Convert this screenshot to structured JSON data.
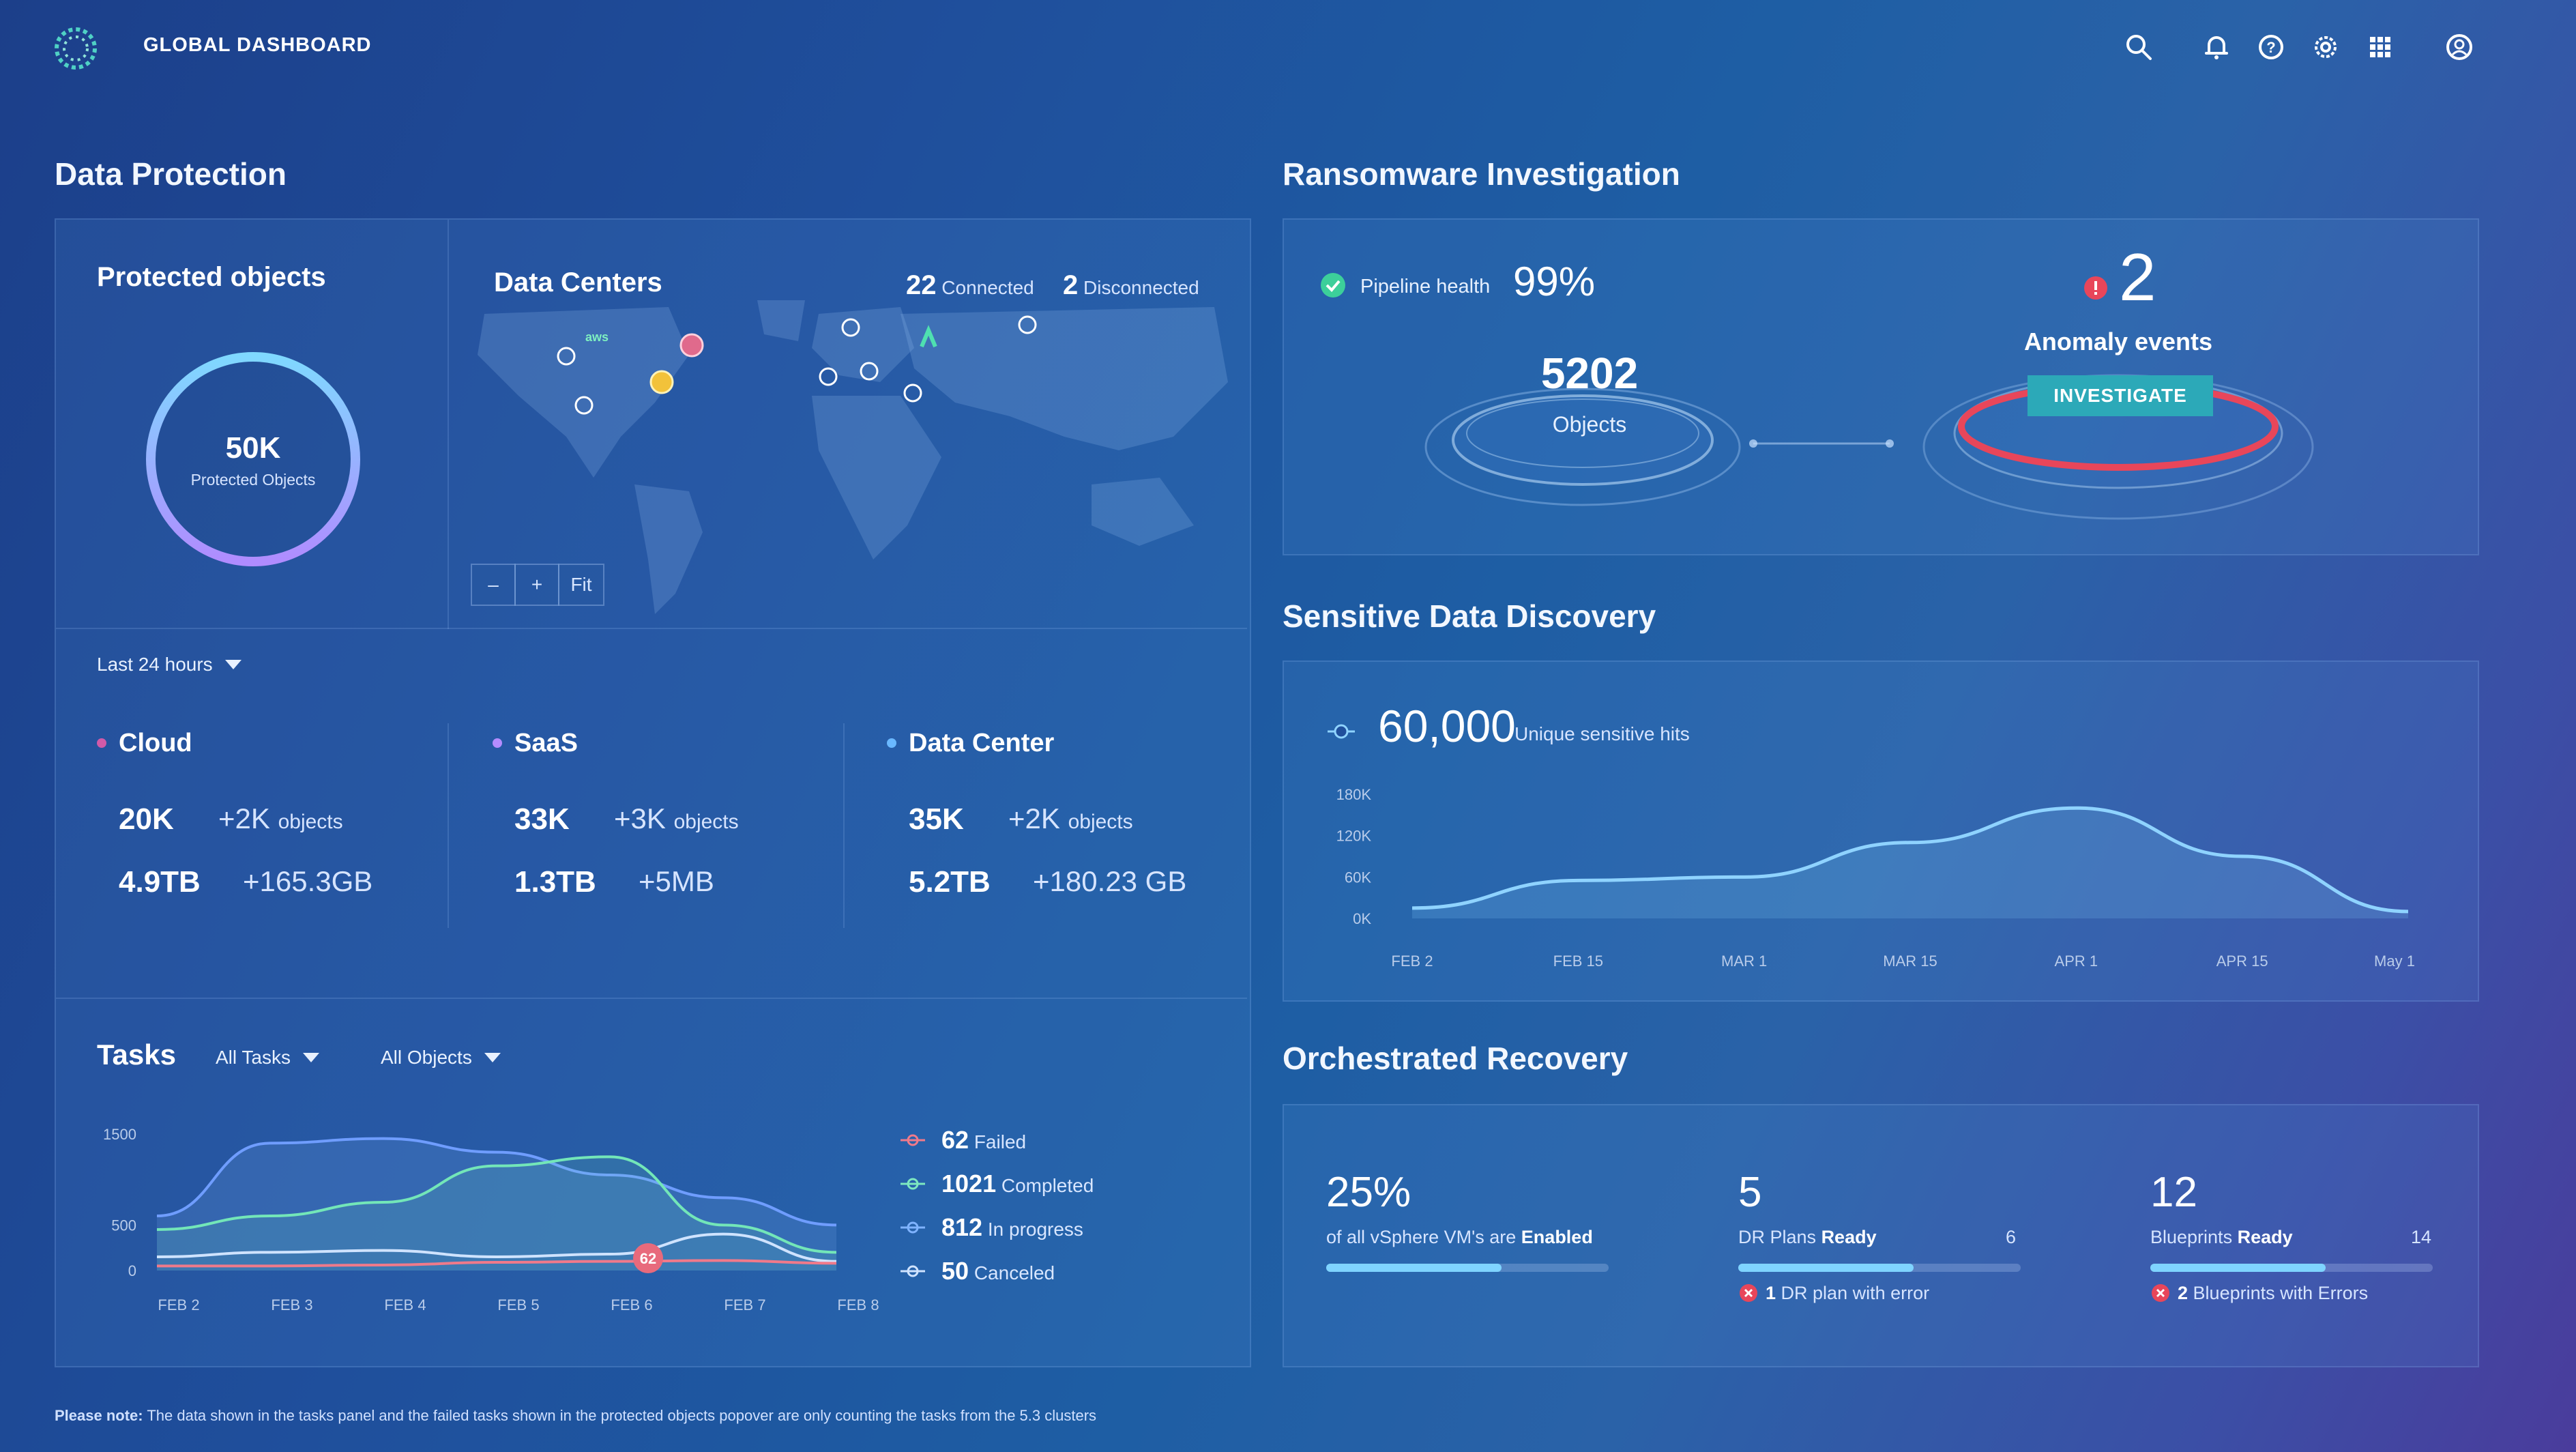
{
  "header": {
    "title": "GLOBAL DASHBOARD",
    "icons": [
      "search-icon",
      "bell-icon",
      "help-icon",
      "gear-icon",
      "apps-grid-icon",
      "user-icon"
    ]
  },
  "data_protection": {
    "title": "Data Protection",
    "protected": {
      "title": "Protected objects",
      "value": "50K",
      "label": "Protected Objects"
    },
    "datacenters": {
      "title": "Data Centers",
      "connected_count": "22",
      "connected_label": "Connected",
      "disconnected_count": "2",
      "disconnected_label": "Disconnected",
      "aws_label": "aws",
      "zoom_out": "–",
      "zoom_in": "+",
      "fit": "Fit"
    },
    "time_filter": "Last 24 hours",
    "categories": [
      {
        "name": "Cloud",
        "color": "#d15aa8",
        "count": "20K",
        "count_delta": "+2K",
        "unit": "objects",
        "size": "4.9TB",
        "size_delta": "+165.3GB"
      },
      {
        "name": "SaaS",
        "color": "#b48cff",
        "count": "33K",
        "count_delta": "+3K",
        "unit": "objects",
        "size": "1.3TB",
        "size_delta": "+5MB"
      },
      {
        "name": "Data Center",
        "color": "#6ab8ff",
        "count": "35K",
        "count_delta": "+2K",
        "unit": "objects",
        "size": "5.2TB",
        "size_delta": "+180.23 GB"
      }
    ],
    "tasks": {
      "title": "Tasks",
      "filter_tasks": "All Tasks",
      "filter_objects": "All Objects",
      "badge": "62",
      "legend": [
        {
          "count": "62",
          "label": "Failed",
          "color": "#f07a8a"
        },
        {
          "count": "1021",
          "label": "Completed",
          "color": "#7de8c0"
        },
        {
          "count": "812",
          "label": "In progress",
          "color": "#7fb3ff"
        },
        {
          "count": "50",
          "label": "Canceled",
          "color": "#cfe3ff"
        }
      ]
    }
  },
  "ransomware": {
    "title": "Ransomware Investigation",
    "pipeline_label": "Pipeline health",
    "pipeline_value": "99%",
    "objects_value": "5202",
    "objects_label": "Objects",
    "anomaly_value": "2",
    "anomaly_label": "Anomaly events",
    "investigate": "INVESTIGATE"
  },
  "sensitive": {
    "title": "Sensitive Data Discovery",
    "value": "60,000",
    "label": "Unique sensitive hits"
  },
  "recovery": {
    "title": "Orchestrated Recovery",
    "vm_value": "25%",
    "vm_label_pre": "of all vSphere VM's are",
    "vm_label_bold": "Enabled",
    "vm_progress": 0.62,
    "dr_value": "5",
    "dr_label_pre": "DR Plans",
    "dr_label_bold": "Ready",
    "dr_total": "6",
    "dr_progress": 0.62,
    "dr_error_count": "1",
    "dr_error_label": "DR plan with error",
    "bp_value": "12",
    "bp_label_pre": "Blueprints",
    "bp_label_bold": "Ready",
    "bp_total": "14",
    "bp_progress": 0.62,
    "bp_error_count": "2",
    "bp_error_label": "Blueprints with Errors"
  },
  "footer": {
    "note_bold": "Please note:",
    "note": "The data shown in the tasks panel and the failed tasks shown in the protected objects popover are only counting the tasks from the 5.3 clusters"
  },
  "chart_data": [
    {
      "type": "area",
      "title": "Sensitive Data Discovery",
      "categories": [
        "FEB 2",
        "FEB 15",
        "MAR 1",
        "MAR 15",
        "APR 1",
        "APR 15",
        "May 1"
      ],
      "series": [
        {
          "name": "Unique sensitive hits",
          "values": [
            15000,
            55000,
            60000,
            110000,
            160000,
            90000,
            10000
          ]
        }
      ],
      "yticks": [
        "180K",
        "120K",
        "60K",
        "0K"
      ],
      "ylim": [
        0,
        180000
      ],
      "color": "#8fd3ff"
    },
    {
      "type": "line",
      "title": "Tasks",
      "categories": [
        "FEB 2",
        "FEB 3",
        "FEB 4",
        "FEB 5",
        "FEB 6",
        "FEB 7",
        "FEB 8"
      ],
      "yticks": [
        "1500",
        "500",
        "0"
      ],
      "ylim": [
        0,
        1500
      ],
      "series": [
        {
          "name": "In progress",
          "color": "#6f9dff",
          "values": [
            600,
            1400,
            1450,
            1300,
            1050,
            800,
            500
          ]
        },
        {
          "name": "Completed",
          "color": "#73e6b8",
          "values": [
            450,
            600,
            750,
            1150,
            1250,
            500,
            200
          ]
        },
        {
          "name": "Canceled",
          "color": "#cfe3ff",
          "values": [
            150,
            200,
            220,
            150,
            180,
            400,
            100
          ]
        },
        {
          "name": "Failed",
          "color": "#f07a8a",
          "values": [
            50,
            50,
            60,
            90,
            100,
            110,
            80
          ]
        }
      ]
    }
  ]
}
